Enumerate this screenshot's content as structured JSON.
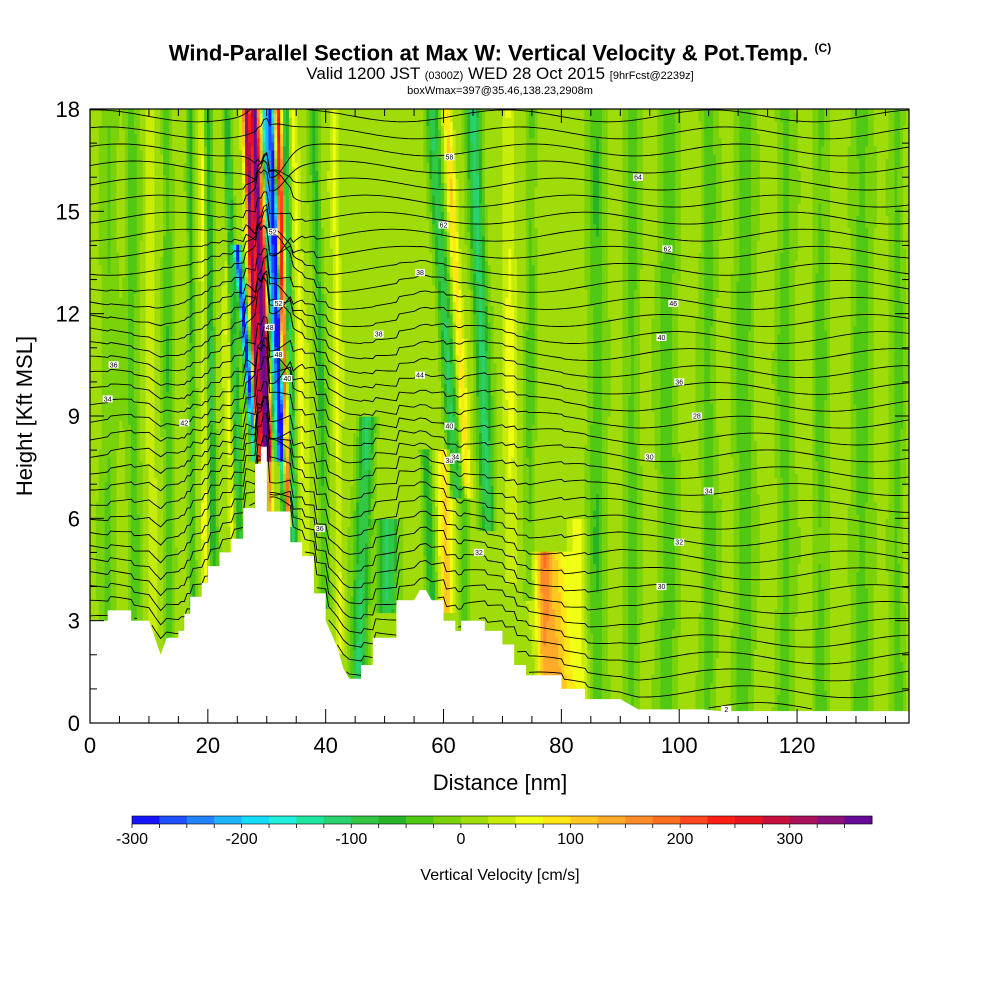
{
  "header": {
    "title": "Wind-Parallel Section at Max W: Vertical Velocity & Pot.Temp.",
    "title_tag": "(C)",
    "valid_prefix": "Valid 1200 JST",
    "valid_utc": "(0300Z)",
    "valid_date": "WED 28 Oct 2015",
    "forecast": "[9hrFcst@2239z]",
    "box_info": "boxWmax=397@35.46,138.23,2908m"
  },
  "colors": {
    "palette": [
      "#1414ff",
      "#1e50ff",
      "#2382ff",
      "#1eb4ff",
      "#14dcff",
      "#1ef0dc",
      "#1ee6a0",
      "#28d26e",
      "#32c846",
      "#28b428",
      "#50c814",
      "#7ad20a",
      "#a0dc0a",
      "#c8ec0a",
      "#f0ff14",
      "#ffe614",
      "#ffc81e",
      "#ffaa28",
      "#ff8c28",
      "#ff6e1e",
      "#ff461e",
      "#ff1e14",
      "#e6141e",
      "#c80f3c",
      "#aa0f5a",
      "#8c0f78",
      "#640a96"
    ],
    "terrain": "#ffffff",
    "background_field": "#a8dc0a"
  },
  "chart_data": {
    "type": "heatmap",
    "xlabel": "Distance [nm]",
    "ylabel": "Height [Kft MSL]",
    "xlim": [
      0,
      139
    ],
    "ylim": [
      0,
      18
    ],
    "x_ticks": [
      0,
      20,
      40,
      60,
      80,
      100,
      120
    ],
    "y_ticks": [
      0,
      3,
      6,
      9,
      12,
      15,
      18
    ],
    "colorbar": {
      "label": "Vertical Velocity [cm/s]",
      "range": [
        -300,
        375
      ],
      "tick_values": [
        -300,
        -200,
        -100,
        0,
        100,
        200,
        300
      ],
      "tick_labels": [
        "-300",
        "-200",
        "-100",
        "0",
        "100",
        "200",
        "300"
      ]
    },
    "terrain_profile": {
      "x": [
        0,
        3,
        3,
        7,
        7,
        10,
        11,
        12,
        13,
        15,
        15,
        16,
        16,
        17,
        17,
        19,
        19,
        20,
        20,
        22,
        22,
        24,
        24,
        26,
        26,
        28,
        28,
        29,
        29,
        30,
        30,
        34,
        34,
        36,
        36,
        38,
        38,
        40,
        40,
        41,
        42,
        43,
        44,
        46,
        46,
        48,
        48,
        52,
        52,
        55,
        56,
        57,
        58,
        60,
        60,
        62,
        62,
        63,
        63,
        67,
        67,
        70,
        70,
        72,
        72,
        74,
        74,
        80,
        80,
        84,
        84,
        90,
        92,
        93,
        95,
        97,
        99,
        101,
        104,
        107,
        109,
        110,
        112,
        113,
        115,
        117,
        118,
        120,
        122,
        125,
        127,
        128,
        130,
        132,
        134,
        136,
        139
      ],
      "h": [
        3.0,
        3.0,
        3.3,
        3.3,
        3.0,
        3.0,
        2.5,
        2.0,
        2.5,
        2.5,
        2.7,
        2.7,
        3.2,
        3.2,
        3.7,
        3.7,
        4.1,
        4.1,
        4.6,
        4.6,
        5.0,
        5.0,
        5.4,
        5.4,
        6.3,
        6.3,
        7.6,
        7.6,
        8.1,
        8.1,
        6.2,
        6.2,
        5.3,
        5.3,
        4.9,
        4.9,
        3.8,
        3.8,
        3.0,
        2.6,
        2.2,
        1.6,
        1.3,
        1.3,
        1.7,
        1.7,
        2.5,
        2.5,
        3.6,
        3.6,
        3.9,
        3.9,
        3.6,
        3.6,
        3.0,
        3.0,
        2.7,
        2.7,
        3.0,
        3.0,
        2.7,
        2.7,
        2.3,
        2.3,
        1.7,
        1.7,
        1.4,
        1.4,
        1.0,
        1.0,
        0.7,
        0.7,
        0.5,
        0.4,
        0.4,
        0.4,
        0.4,
        0.4,
        0.4,
        0.35,
        0.35,
        0.35,
        0.35,
        0.35,
        0.35,
        0.35,
        0.35,
        0.35,
        0.35,
        0.35,
        0.35,
        0.35,
        0.35,
        0.35,
        0.35,
        0.35,
        0.35
      ]
    },
    "w_features": [
      {
        "x_bottom": 28.5,
        "x_top": 26.5,
        "h_bottom": 8.1,
        "h_top": 18,
        "half_width": 0.55,
        "w": 320
      },
      {
        "x_bottom": 29.8,
        "x_top": 27.9,
        "h_bottom": 8.1,
        "h_top": 18,
        "half_width": 0.7,
        "w": 380
      },
      {
        "x_bottom": 30.7,
        "x_top": 29.0,
        "h_bottom": 6.2,
        "h_top": 18,
        "half_width": 0.35,
        "w": 160
      },
      {
        "x_bottom": 28.0,
        "x_top": 25.0,
        "h_bottom": 8.1,
        "h_top": 14,
        "half_width": 0.6,
        "w": -300
      },
      {
        "x_bottom": 32.2,
        "x_top": 29.6,
        "h_bottom": 8.1,
        "h_top": 18,
        "half_width": 0.9,
        "w": -230
      },
      {
        "x_bottom": 33.0,
        "x_top": 30.7,
        "h_bottom": 6.2,
        "h_top": 18,
        "half_width": 0.45,
        "w": -260
      },
      {
        "x_bottom": 33.4,
        "x_top": 32.0,
        "h_bottom": 6.2,
        "h_top": 18,
        "half_width": 0.6,
        "w": 250
      },
      {
        "x_bottom": 34.5,
        "x_top": 33.0,
        "h_bottom": 5.5,
        "h_top": 18,
        "half_width": 0.7,
        "w": -130
      },
      {
        "x_bottom": 36.5,
        "x_top": 34.5,
        "h_bottom": 5.0,
        "h_top": 18,
        "half_width": 0.8,
        "w": 40
      },
      {
        "x_bottom": 25.5,
        "x_top": 23.0,
        "h_bottom": 5.4,
        "h_top": 18,
        "half_width": 0.8,
        "w": -100
      },
      {
        "x_bottom": 24.2,
        "x_top": 22.5,
        "h_bottom": 5.0,
        "h_top": 18,
        "half_width": 0.5,
        "w": 50
      },
      {
        "x_bottom": 21.0,
        "x_top": 20.0,
        "h_bottom": 4.6,
        "h_top": 18,
        "half_width": 0.7,
        "w": -90
      },
      {
        "x_bottom": 19.5,
        "x_top": 19.0,
        "h_bottom": 4.1,
        "h_top": 18,
        "half_width": 0.5,
        "w": 40
      },
      {
        "x_bottom": 17.5,
        "x_top": 17.0,
        "h_bottom": 3.5,
        "h_top": 18,
        "half_width": 0.6,
        "w": -70
      },
      {
        "x_bottom": 13.5,
        "x_top": 13.0,
        "h_bottom": 2.5,
        "h_top": 18,
        "half_width": 0.9,
        "w": -60
      },
      {
        "x_bottom": 10.5,
        "x_top": 10.0,
        "h_bottom": 3.0,
        "h_top": 18,
        "half_width": 0.7,
        "w": 30
      },
      {
        "x_bottom": 7.5,
        "x_top": 7.0,
        "h_bottom": 3.3,
        "h_top": 18,
        "half_width": 1.2,
        "w": -50
      },
      {
        "x_bottom": 3.0,
        "x_top": 3.5,
        "h_bottom": 3.0,
        "h_top": 18,
        "half_width": 1.5,
        "w": -40
      },
      {
        "x_bottom": 40.0,
        "x_top": 38.0,
        "h_bottom": 3.8,
        "h_top": 18,
        "half_width": 0.9,
        "w": -70
      },
      {
        "x_bottom": 42.5,
        "x_top": 41.5,
        "h_bottom": 2.5,
        "h_top": 18,
        "half_width": 0.6,
        "w": 40
      },
      {
        "x_bottom": 45.5,
        "x_top": 47.0,
        "h_bottom": 1.3,
        "h_top": 9,
        "half_width": 1.4,
        "w": -120
      },
      {
        "x_bottom": 50.5,
        "x_top": 50.5,
        "h_bottom": 3.6,
        "h_top": 6,
        "half_width": 1.8,
        "w": -110
      },
      {
        "x_bottom": 60.5,
        "x_top": 60.0,
        "h_bottom": 3.6,
        "h_top": 8,
        "half_width": 1.1,
        "w": 90
      },
      {
        "x_bottom": 58.0,
        "x_top": 57.0,
        "h_bottom": 3.6,
        "h_top": 8,
        "half_width": 0.9,
        "w": -80
      },
      {
        "x_bottom": 63.5,
        "x_top": 63.5,
        "h_bottom": 3.0,
        "h_top": 7,
        "half_width": 0.7,
        "w": -60
      },
      {
        "x_bottom": 62.0,
        "x_top": 58.0,
        "h_bottom": 7.0,
        "h_top": 18,
        "half_width": 1.1,
        "w": -110
      },
      {
        "x_bottom": 64.0,
        "x_top": 60.5,
        "h_bottom": 7.0,
        "h_top": 18,
        "half_width": 0.7,
        "w": 80
      },
      {
        "x_bottom": 67.5,
        "x_top": 65.0,
        "h_bottom": 6.0,
        "h_top": 18,
        "half_width": 1.3,
        "w": -120
      },
      {
        "x_bottom": 71.5,
        "x_top": 71.0,
        "h_bottom": 4.5,
        "h_top": 18,
        "half_width": 1.0,
        "w": 40
      },
      {
        "x_bottom": 74.5,
        "x_top": 75.0,
        "h_bottom": 4.0,
        "h_top": 18,
        "half_width": 0.9,
        "w": -50
      },
      {
        "x_bottom": 79.5,
        "x_top": 78.0,
        "h_bottom": 1.0,
        "h_top": 5,
        "half_width": 2.6,
        "w": 110
      },
      {
        "x_bottom": 77.0,
        "x_top": 77.0,
        "h_bottom": 1.4,
        "h_top": 5,
        "half_width": 1.0,
        "w": 70
      },
      {
        "x_bottom": 83.0,
        "x_top": 83.0,
        "h_bottom": 0.7,
        "h_top": 6,
        "half_width": 1.4,
        "w": 45
      },
      {
        "x_bottom": 86.0,
        "x_top": 86.0,
        "h_bottom": 0.6,
        "h_top": 18,
        "half_width": 1.6,
        "w": -60
      },
      {
        "x_bottom": 92.0,
        "x_top": 92.0,
        "h_bottom": 0.4,
        "h_top": 18,
        "half_width": 1.4,
        "w": -50
      },
      {
        "x_bottom": 98.0,
        "x_top": 98.0,
        "h_bottom": 0.4,
        "h_top": 18,
        "half_width": 1.8,
        "w": -55
      },
      {
        "x_bottom": 105.0,
        "x_top": 105.0,
        "h_bottom": 0.4,
        "h_top": 18,
        "half_width": 1.5,
        "w": -50
      },
      {
        "x_bottom": 111.0,
        "x_top": 111.0,
        "h_bottom": 0.4,
        "h_top": 18,
        "half_width": 1.8,
        "w": -55
      },
      {
        "x_bottom": 118.0,
        "x_top": 118.0,
        "h_bottom": 0.4,
        "h_top": 18,
        "half_width": 1.6,
        "w": -50
      },
      {
        "x_bottom": 124.0,
        "x_top": 124.0,
        "h_bottom": 0.4,
        "h_top": 18,
        "half_width": 1.4,
        "w": -50
      },
      {
        "x_bottom": 131.0,
        "x_top": 131.0,
        "h_bottom": 0.4,
        "h_top": 18,
        "half_width": 1.8,
        "w": -55
      },
      {
        "x_bottom": 137.0,
        "x_top": 137.0,
        "h_bottom": 0.4,
        "h_top": 18,
        "half_width": 1.3,
        "w": -50
      }
    ],
    "theta_contours": {
      "levels": 36,
      "lowest": 0.3,
      "spacing": 0.5,
      "notes": "potential temperature isentropes drawn as black lines"
    },
    "contour_labels": [
      {
        "x": 4,
        "y": 10.5,
        "text": "36"
      },
      {
        "x": 3,
        "y": 9.5,
        "text": "34"
      },
      {
        "x": 16,
        "y": 8.8,
        "text": "42"
      },
      {
        "x": 31,
        "y": 14.4,
        "text": "52"
      },
      {
        "x": 32,
        "y": 12.3,
        "text": "52"
      },
      {
        "x": 30.5,
        "y": 11.6,
        "text": "48"
      },
      {
        "x": 32,
        "y": 10.8,
        "text": "48"
      },
      {
        "x": 33.5,
        "y": 10.1,
        "text": "40"
      },
      {
        "x": 39,
        "y": 5.7,
        "text": "36"
      },
      {
        "x": 49,
        "y": 11.4,
        "text": "38"
      },
      {
        "x": 56,
        "y": 13.2,
        "text": "38"
      },
      {
        "x": 56,
        "y": 10.2,
        "text": "44"
      },
      {
        "x": 61,
        "y": 8.7,
        "text": "40"
      },
      {
        "x": 61,
        "y": 7.7,
        "text": "38"
      },
      {
        "x": 62,
        "y": 7.8,
        "text": "34"
      },
      {
        "x": 66,
        "y": 5.0,
        "text": "32"
      },
      {
        "x": 61,
        "y": 16.6,
        "text": "58"
      },
      {
        "x": 60,
        "y": 14.6,
        "text": "62"
      },
      {
        "x": 93,
        "y": 16.0,
        "text": "64"
      },
      {
        "x": 98,
        "y": 13.9,
        "text": "62"
      },
      {
        "x": 99,
        "y": 12.3,
        "text": "46"
      },
      {
        "x": 97,
        "y": 11.3,
        "text": "40"
      },
      {
        "x": 100,
        "y": 10.0,
        "text": "36"
      },
      {
        "x": 103,
        "y": 9.0,
        "text": "28"
      },
      {
        "x": 95,
        "y": 7.8,
        "text": "30"
      },
      {
        "x": 105,
        "y": 6.8,
        "text": "34"
      },
      {
        "x": 100,
        "y": 5.3,
        "text": "32"
      },
      {
        "x": 97,
        "y": 4.0,
        "text": "30"
      },
      {
        "x": 108,
        "y": 0.4,
        "text": "2"
      }
    ]
  }
}
